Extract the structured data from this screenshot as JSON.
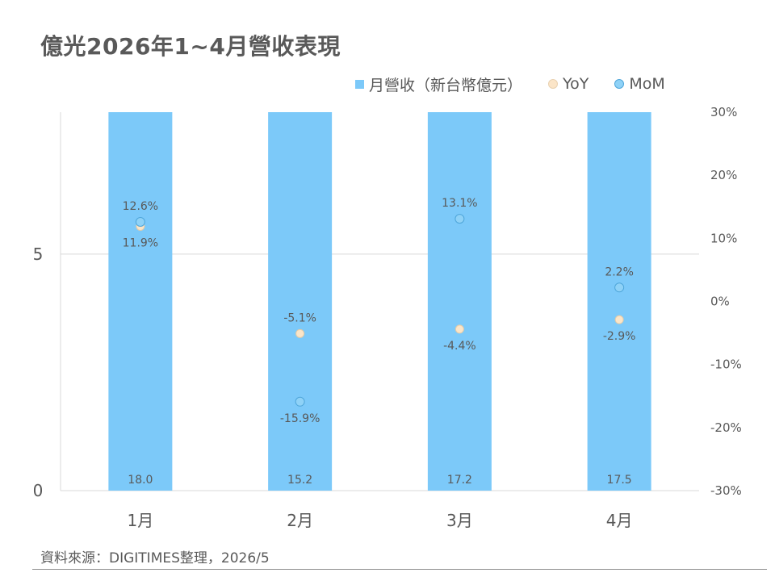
{
  "title": "億光2026年1~4月營收表現",
  "source": "資料來源：DIGITIMES整理，2026/5",
  "legend": {
    "revenue": "月營收（新台幣億元）",
    "yoy": "YoY",
    "mom": "MoM"
  },
  "chart_data": {
    "type": "bar",
    "categories": [
      "1月",
      "2月",
      "3月",
      "4月"
    ],
    "series": [
      {
        "name": "月營收（新台幣億元）",
        "kind": "bar",
        "axis": "left",
        "values": [
          18.0,
          15.2,
          17.2,
          17.5
        ],
        "labels": [
          "18.0",
          "15.2",
          "17.2",
          "17.5"
        ]
      },
      {
        "name": "YoY",
        "kind": "scatter",
        "axis": "right",
        "values": [
          11.9,
          -5.1,
          -4.4,
          -2.9
        ],
        "labels": [
          "11.9%",
          "-5.1%",
          "-4.4%",
          "-2.9%"
        ]
      },
      {
        "name": "MoM",
        "kind": "scatter",
        "axis": "right",
        "values": [
          12.6,
          -15.9,
          13.1,
          2.2
        ],
        "labels": [
          "12.6%",
          "-15.9%",
          "13.1%",
          "2.2%"
        ]
      }
    ],
    "y_left": {
      "min": 0,
      "max": 8,
      "ticks": [
        0,
        5
      ],
      "tick_labels": [
        "0",
        "5"
      ]
    },
    "y_right": {
      "min": -30,
      "max": 30,
      "ticks": [
        -30,
        -20,
        -10,
        0,
        10,
        20,
        30
      ],
      "tick_labels": [
        "-30%",
        "-20%",
        "-10%",
        "0%",
        "10%",
        "20%",
        "30%"
      ]
    },
    "grid": true,
    "legend_position": "top-right",
    "colors": {
      "bar": "#7CC9F9",
      "yoy": "#FBE5C8",
      "mom": "#8FD2F7",
      "text": "#595959"
    }
  }
}
